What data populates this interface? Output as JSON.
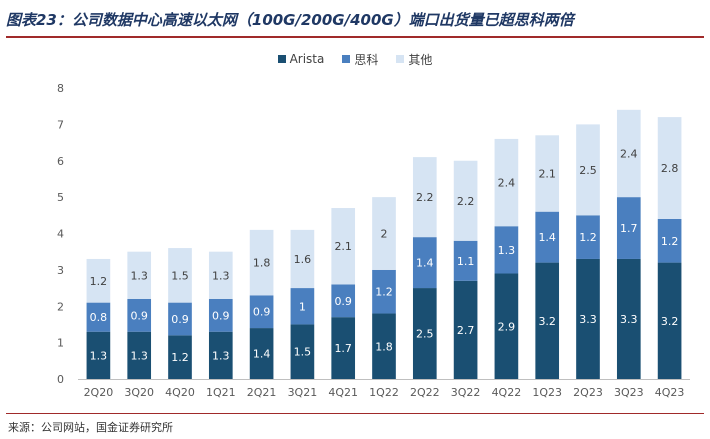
{
  "title": "图表23：公司数据中心高速以太网（100G/200G/400G）端口出货量已超思科两倍",
  "source": "来源：公司网站，国金证券研究所",
  "colors": {
    "arista": "#1a4f72",
    "cisco": "#4a7fbf",
    "other": "#d6e4f3",
    "accent": "#1f3864"
  },
  "chart_data": {
    "type": "bar",
    "stacked": true,
    "categories": [
      "2Q20",
      "3Q20",
      "4Q20",
      "1Q21",
      "2Q21",
      "3Q21",
      "4Q21",
      "1Q22",
      "2Q22",
      "3Q22",
      "4Q22",
      "1Q23",
      "2Q23",
      "3Q23",
      "4Q23"
    ],
    "series": [
      {
        "name": "Arista",
        "values": [
          1.3,
          1.3,
          1.2,
          1.3,
          1.4,
          1.5,
          1.7,
          1.8,
          2.5,
          2.7,
          2.9,
          3.2,
          3.3,
          3.3,
          3.2
        ]
      },
      {
        "name": "思科",
        "values": [
          0.8,
          0.9,
          0.9,
          0.9,
          0.9,
          1,
          0.9,
          1.2,
          1.4,
          1.1,
          1.3,
          1.4,
          1.2,
          1.7,
          1.2
        ]
      },
      {
        "name": "其他",
        "values": [
          1.2,
          1.3,
          1.5,
          1.3,
          1.8,
          1.6,
          2.1,
          2,
          2.2,
          2.2,
          2.4,
          2.1,
          2.5,
          2.4,
          2.8
        ]
      }
    ],
    "ylim": [
      0,
      8
    ],
    "yticks": [
      0,
      1,
      2,
      3,
      4,
      5,
      6,
      7,
      8
    ],
    "legend": "top-center",
    "grid": false
  }
}
